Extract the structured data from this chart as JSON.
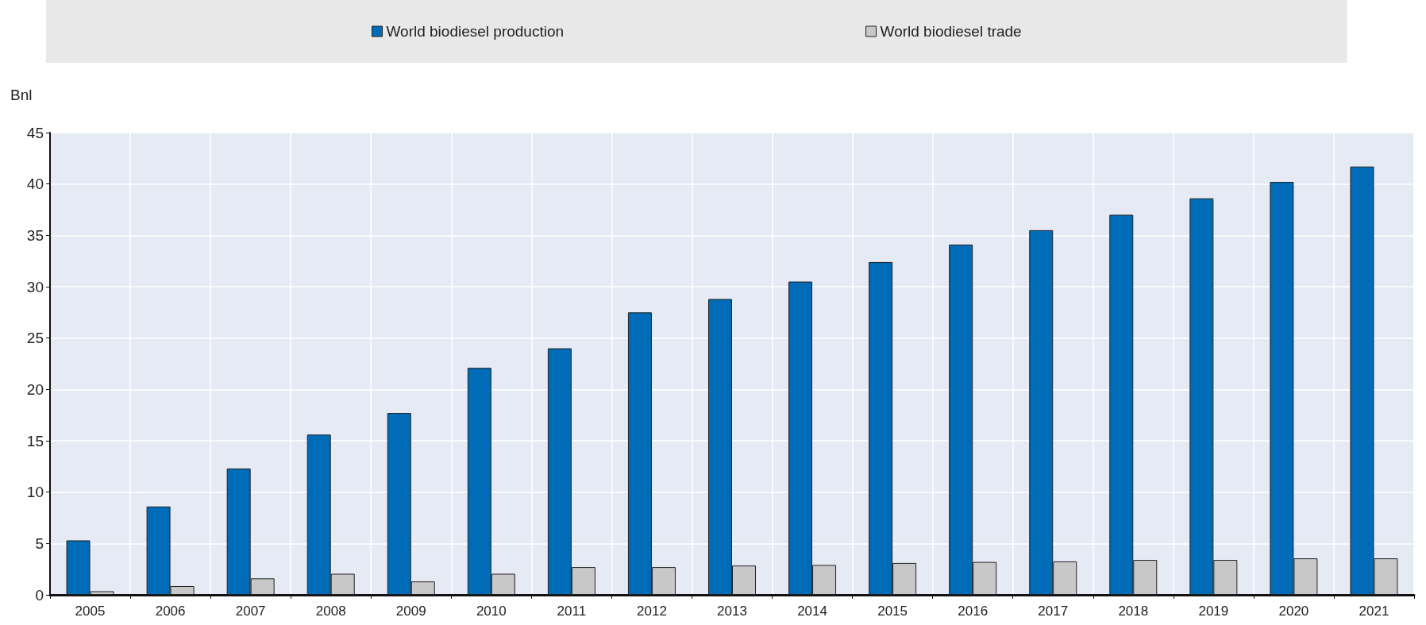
{
  "chart_data": {
    "type": "bar",
    "ylabel": "Bnl",
    "categories": [
      "2005",
      "2006",
      "2007",
      "2008",
      "2009",
      "2010",
      "2011",
      "2012",
      "2013",
      "2014",
      "2015",
      "2016",
      "2017",
      "2018",
      "2019",
      "2020",
      "2021"
    ],
    "series": [
      {
        "name": "World biodiesel production",
        "color": "#006bb6",
        "values": [
          5.3,
          8.6,
          12.3,
          15.6,
          17.7,
          22.1,
          24.0,
          27.5,
          28.8,
          30.5,
          32.4,
          34.1,
          35.5,
          37.0,
          38.6,
          40.2,
          41.7
        ]
      },
      {
        "name": "World biodiesel trade",
        "color": "#c8c8c8",
        "values": [
          0.35,
          0.85,
          1.6,
          2.05,
          1.3,
          2.05,
          2.7,
          2.7,
          2.85,
          2.9,
          3.1,
          3.2,
          3.25,
          3.4,
          3.4,
          3.55,
          3.55
        ]
      }
    ],
    "ylim": [
      0,
      45
    ],
    "yticks": [
      0,
      5,
      10,
      15,
      20,
      25,
      30,
      35,
      40,
      45
    ],
    "grid": true,
    "legend": "top"
  }
}
